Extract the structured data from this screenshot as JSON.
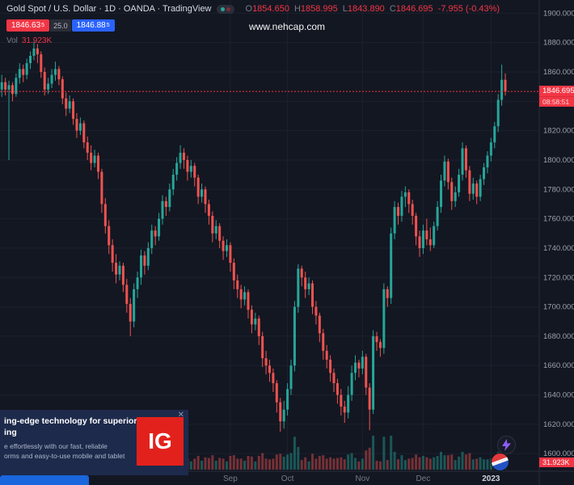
{
  "header": {
    "title": "Gold Spot / U.S. Dollar · 1D · OANDA · TradingView",
    "ohlc": {
      "o_label": "O",
      "o": "1854.650",
      "h_label": "H",
      "h": "1858.995",
      "l_label": "L",
      "l": "1843.890",
      "c_label": "C",
      "c": "1846.695",
      "change": "-7.955 (-0.43%)"
    },
    "quote": {
      "sell": "1846.63",
      "sell_sup": "5",
      "spread": "25.0",
      "buy": "1846.88",
      "buy_sup": "5"
    },
    "vol_label": "Vol",
    "vol_value": "31.923K"
  },
  "watermark": "www.nehcap.com",
  "price_axis": {
    "labels": [
      "1900.000",
      "1880.000",
      "1860.000",
      "1840.000",
      "1820.000",
      "1800.000",
      "1780.000",
      "1760.000",
      "1740.000",
      "1720.000",
      "1700.000",
      "1680.000",
      "1660.000",
      "1640.000",
      "1620.000",
      "1600.000"
    ],
    "current_price": "1846.695",
    "countdown": "08:58:51",
    "volume_badge": "31.923K"
  },
  "ad": {
    "headline_1": "ing-edge technology for superior",
    "headline_2": "ing",
    "body_1": "e effortlessly with our fast, reliable",
    "body_2": "orms and easy-to-use mobile and tablet",
    "logo": "IG",
    "close": "✕"
  },
  "colors": {
    "up": "#26a69a",
    "down": "#ef5350",
    "accent_red": "#f23645",
    "accent_blue": "#2962ff",
    "bg": "#131722",
    "grid": "#1c212e",
    "axis_text": "#9aa0aa",
    "ad_bg": "#1d2a4b",
    "ig_red": "#e3211c"
  },
  "chart_data": {
    "type": "candlestick",
    "title": "Gold Spot / U.S. Dollar",
    "interval": "1D",
    "exchange": "OANDA",
    "ylim": [
      1588,
      1909
    ],
    "grid": true,
    "last": {
      "open": 1854.65,
      "high": 1858.995,
      "low": 1843.89,
      "close": 1846.695,
      "change": -7.955,
      "change_pct": -0.43
    },
    "months": [
      {
        "label": "Sep",
        "index": 64
      },
      {
        "label": "Oct",
        "index": 80
      },
      {
        "label": "Nov",
        "index": 101
      },
      {
        "label": "Dec",
        "index": 118
      },
      {
        "label": "2023",
        "index": 137,
        "emphasis": true
      }
    ],
    "candles": [
      [
        1848,
        1858,
        1843,
        1853
      ],
      [
        1853,
        1856,
        1844,
        1848
      ],
      [
        1848,
        1854,
        1800,
        1851
      ],
      [
        1851,
        1853,
        1840,
        1845
      ],
      [
        1845,
        1859,
        1843,
        1856
      ],
      [
        1856,
        1866,
        1852,
        1862
      ],
      [
        1862,
        1865,
        1853,
        1858
      ],
      [
        1858,
        1869,
        1855,
        1866
      ],
      [
        1866,
        1874,
        1862,
        1871
      ],
      [
        1871,
        1881,
        1868,
        1876
      ],
      [
        1876,
        1879,
        1866,
        1872
      ],
      [
        1872,
        1874,
        1856,
        1860
      ],
      [
        1860,
        1863,
        1844,
        1848
      ],
      [
        1848,
        1856,
        1845,
        1852
      ],
      [
        1852,
        1862,
        1849,
        1858
      ],
      [
        1858,
        1867,
        1854,
        1862
      ],
      [
        1862,
        1864,
        1851,
        1855
      ],
      [
        1855,
        1857,
        1838,
        1842
      ],
      [
        1842,
        1846,
        1830,
        1835
      ],
      [
        1835,
        1844,
        1832,
        1840
      ],
      [
        1840,
        1842,
        1824,
        1828
      ],
      [
        1828,
        1832,
        1815,
        1820
      ],
      [
        1820,
        1829,
        1817,
        1825
      ],
      [
        1825,
        1827,
        1808,
        1812
      ],
      [
        1812,
        1816,
        1800,
        1805
      ],
      [
        1805,
        1810,
        1793,
        1798
      ],
      [
        1798,
        1807,
        1795,
        1803
      ],
      [
        1803,
        1805,
        1787,
        1792
      ],
      [
        1792,
        1794,
        1764,
        1770
      ],
      [
        1770,
        1774,
        1750,
        1755
      ],
      [
        1755,
        1759,
        1736,
        1742
      ],
      [
        1742,
        1746,
        1724,
        1730
      ],
      [
        1730,
        1736,
        1716,
        1722
      ],
      [
        1722,
        1731,
        1718,
        1728
      ],
      [
        1728,
        1730,
        1710,
        1715
      ],
      [
        1715,
        1719,
        1696,
        1702
      ],
      [
        1702,
        1706,
        1680,
        1690
      ],
      [
        1690,
        1716,
        1686,
        1712
      ],
      [
        1712,
        1724,
        1706,
        1720
      ],
      [
        1720,
        1739,
        1715,
        1735
      ],
      [
        1735,
        1738,
        1722,
        1728
      ],
      [
        1728,
        1744,
        1725,
        1740
      ],
      [
        1740,
        1756,
        1736,
        1752
      ],
      [
        1752,
        1755,
        1742,
        1748
      ],
      [
        1748,
        1764,
        1745,
        1760
      ],
      [
        1760,
        1776,
        1756,
        1772
      ],
      [
        1772,
        1775,
        1762,
        1768
      ],
      [
        1768,
        1784,
        1765,
        1780
      ],
      [
        1780,
        1794,
        1776,
        1790
      ],
      [
        1790,
        1802,
        1786,
        1798
      ],
      [
        1798,
        1810,
        1794,
        1805
      ],
      [
        1805,
        1808,
        1794,
        1800
      ],
      [
        1800,
        1803,
        1786,
        1792
      ],
      [
        1792,
        1800,
        1788,
        1796
      ],
      [
        1796,
        1798,
        1782,
        1788
      ],
      [
        1788,
        1790,
        1770,
        1775
      ],
      [
        1775,
        1784,
        1771,
        1780
      ],
      [
        1780,
        1782,
        1764,
        1770
      ],
      [
        1770,
        1773,
        1756,
        1762
      ],
      [
        1762,
        1765,
        1744,
        1750
      ],
      [
        1750,
        1759,
        1746,
        1755
      ],
      [
        1755,
        1757,
        1740,
        1745
      ],
      [
        1745,
        1748,
        1732,
        1738
      ],
      [
        1738,
        1746,
        1734,
        1742
      ],
      [
        1742,
        1744,
        1724,
        1730
      ],
      [
        1730,
        1733,
        1712,
        1718
      ],
      [
        1718,
        1722,
        1706,
        1712
      ],
      [
        1712,
        1715,
        1699,
        1705
      ],
      [
        1705,
        1714,
        1701,
        1710
      ],
      [
        1710,
        1712,
        1692,
        1698
      ],
      [
        1698,
        1701,
        1682,
        1688
      ],
      [
        1688,
        1696,
        1684,
        1692
      ],
      [
        1692,
        1694,
        1674,
        1680
      ],
      [
        1680,
        1683,
        1659,
        1665
      ],
      [
        1665,
        1670,
        1654,
        1660
      ],
      [
        1660,
        1664,
        1649,
        1655
      ],
      [
        1655,
        1658,
        1642,
        1648
      ],
      [
        1648,
        1650,
        1628,
        1635
      ],
      [
        1635,
        1638,
        1615,
        1622
      ],
      [
        1622,
        1636,
        1617,
        1630
      ],
      [
        1630,
        1648,
        1626,
        1644
      ],
      [
        1644,
        1664,
        1640,
        1660
      ],
      [
        1660,
        1704,
        1656,
        1700
      ],
      [
        1700,
        1729,
        1696,
        1726
      ],
      [
        1726,
        1728,
        1714,
        1720
      ],
      [
        1720,
        1724,
        1706,
        1712
      ],
      [
        1712,
        1720,
        1708,
        1716
      ],
      [
        1716,
        1718,
        1695,
        1700
      ],
      [
        1700,
        1704,
        1688,
        1694
      ],
      [
        1694,
        1696,
        1676,
        1682
      ],
      [
        1682,
        1685,
        1664,
        1670
      ],
      [
        1670,
        1674,
        1658,
        1664
      ],
      [
        1664,
        1667,
        1649,
        1655
      ],
      [
        1655,
        1658,
        1642,
        1648
      ],
      [
        1648,
        1651,
        1634,
        1640
      ],
      [
        1640,
        1644,
        1626,
        1632
      ],
      [
        1632,
        1636,
        1621,
        1628
      ],
      [
        1628,
        1646,
        1624,
        1640
      ],
      [
        1640,
        1660,
        1636,
        1655
      ],
      [
        1655,
        1667,
        1650,
        1662
      ],
      [
        1662,
        1664,
        1652,
        1658
      ],
      [
        1658,
        1670,
        1654,
        1666
      ],
      [
        1666,
        1668,
        1640,
        1645
      ],
      [
        1645,
        1648,
        1616,
        1630
      ],
      [
        1630,
        1684,
        1627,
        1680
      ],
      [
        1680,
        1683,
        1670,
        1676
      ],
      [
        1676,
        1678,
        1666,
        1672
      ],
      [
        1672,
        1716,
        1668,
        1712
      ],
      [
        1712,
        1714,
        1700,
        1706
      ],
      [
        1706,
        1754,
        1702,
        1750
      ],
      [
        1750,
        1772,
        1746,
        1768
      ],
      [
        1768,
        1771,
        1756,
        1762
      ],
      [
        1762,
        1779,
        1758,
        1775
      ],
      [
        1775,
        1782,
        1768,
        1778
      ],
      [
        1778,
        1780,
        1764,
        1770
      ],
      [
        1770,
        1773,
        1756,
        1762
      ],
      [
        1762,
        1764,
        1742,
        1748
      ],
      [
        1748,
        1752,
        1734,
        1740
      ],
      [
        1740,
        1756,
        1736,
        1752
      ],
      [
        1752,
        1760,
        1742,
        1746
      ],
      [
        1746,
        1754,
        1738,
        1742
      ],
      [
        1742,
        1758,
        1740,
        1755
      ],
      [
        1755,
        1772,
        1752,
        1768
      ],
      [
        1768,
        1790,
        1764,
        1786
      ],
      [
        1786,
        1803,
        1782,
        1799
      ],
      [
        1799,
        1801,
        1780,
        1785
      ],
      [
        1785,
        1788,
        1766,
        1772
      ],
      [
        1772,
        1782,
        1768,
        1778
      ],
      [
        1778,
        1794,
        1775,
        1790
      ],
      [
        1790,
        1812,
        1786,
        1808
      ],
      [
        1808,
        1810,
        1788,
        1793
      ],
      [
        1793,
        1796,
        1772,
        1777
      ],
      [
        1777,
        1788,
        1773,
        1784
      ],
      [
        1784,
        1786,
        1770,
        1775
      ],
      [
        1775,
        1790,
        1772,
        1787
      ],
      [
        1787,
        1798,
        1783,
        1795
      ],
      [
        1795,
        1806,
        1791,
        1803
      ],
      [
        1803,
        1815,
        1799,
        1812
      ],
      [
        1812,
        1826,
        1808,
        1823
      ],
      [
        1823,
        1845,
        1819,
        1841
      ],
      [
        1841,
        1865,
        1837,
        1854.65
      ],
      [
        1854.65,
        1858.995,
        1843.89,
        1846.695
      ]
    ]
  }
}
